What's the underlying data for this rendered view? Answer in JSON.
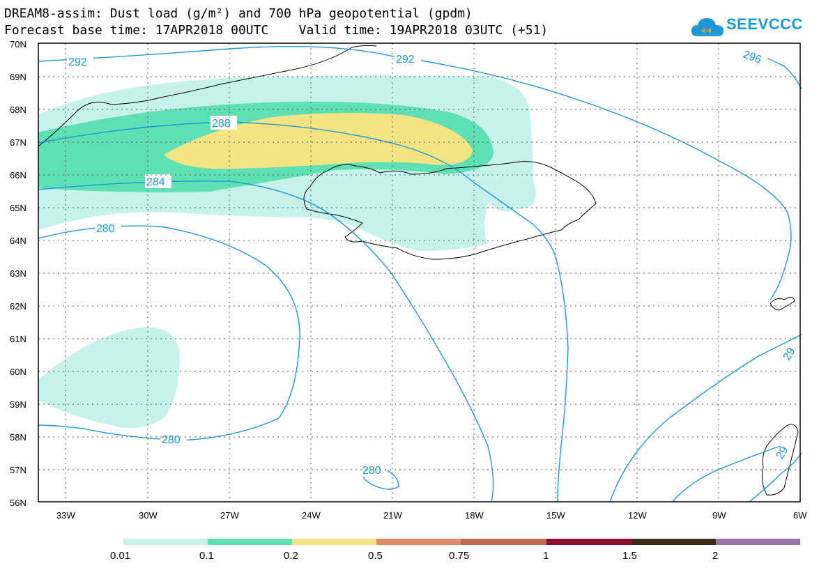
{
  "title": {
    "line1": "DREAM8-assim: Dust load (g/m²) and 700 hPa geopotential (gpdm)",
    "line2": "Forecast base time: 17APR2018 00UTC    Valid time: 19APR2018 03UTC (+51)"
  },
  "logo": {
    "text": "SEEVCCC",
    "icon": "cloud-icon",
    "color": "#1f98d6"
  },
  "map": {
    "lat_labels": [
      "70N",
      "69N",
      "68N",
      "67N",
      "66N",
      "65N",
      "64N",
      "63N",
      "62N",
      "61N",
      "60N",
      "59N",
      "58N",
      "57N",
      "56N"
    ],
    "lon_labels": [
      "33W",
      "30W",
      "27W",
      "24W",
      "21W",
      "18W",
      "15W",
      "12W",
      "9W",
      "6W"
    ],
    "contour_color": "#1f98d6",
    "contour_labels": [
      "292",
      "292",
      "296",
      "288",
      "284",
      "280",
      "280",
      "280",
      "29",
      "",
      "29"
    ],
    "dust_colors": {
      "0.01": "#c6f2ea",
      "0.1": "#5ee0b4",
      "0.2": "#f2e483"
    }
  },
  "colorbar": {
    "labels": [
      "0.01",
      "0.1",
      "0.2",
      "0.5",
      "0.75",
      "1",
      "1.5",
      "2"
    ],
    "colors": [
      "#c6f2ea",
      "#5ee0b4",
      "#f2e483",
      "#e08a6a",
      "#c26a56",
      "#8a0f30",
      "#3e2c1a",
      "#9a74a6"
    ]
  }
}
